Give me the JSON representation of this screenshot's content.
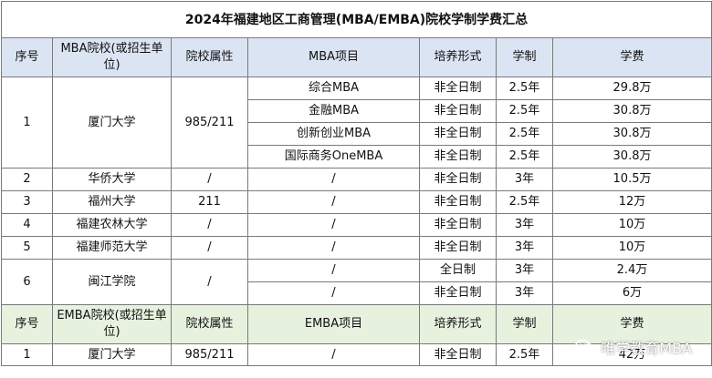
{
  "title": "2024年福建地区工商管理(MBA/EMBA)院校学制学费汇总",
  "headers": [
    "序号",
    "MBA院校(或招生单位)",
    "院校属性",
    "MBA项目",
    "培养形式",
    "学制",
    "学费"
  ],
  "xiamen": {
    "no": "1",
    "school": "厦门大学",
    "attr": "985/211",
    "programs": [
      {
        "name": "综合MBA",
        "form": "非全日制",
        "years": "2.5年",
        "fee": "29.8万"
      },
      {
        "name": "金融MBA",
        "form": "非全日制",
        "years": "2.5年",
        "fee": "30.8万"
      },
      {
        "name": "创新创业MBA",
        "form": "非全日制",
        "years": "2.5年",
        "fee": "30.8万"
      },
      {
        "name": "国际商务OneMBA",
        "form": "非全日制",
        "years": "2.5年",
        "fee": "30.8万"
      }
    ]
  },
  "rows": [
    {
      "no": "2",
      "school": "华侨大学",
      "attr": "/",
      "program": "/",
      "form": "非全日制",
      "years": "3年",
      "fee": "10.5万"
    },
    {
      "no": "3",
      "school": "福州大学",
      "attr": "211",
      "program": "/",
      "form": "非全日制",
      "years": "2.5年",
      "fee": "12万"
    },
    {
      "no": "4",
      "school": "福建农林大学",
      "attr": "/",
      "program": "/",
      "form": "非全日制",
      "years": "3年",
      "fee": "10万"
    },
    {
      "no": "5",
      "school": "福建师范大学",
      "attr": "/",
      "program": "/",
      "form": "非全日制",
      "years": "3年",
      "fee": "10万"
    }
  ],
  "minjiang": {
    "no": "6",
    "school": "闽江学院",
    "attr": "/",
    "options": [
      {
        "program": "/",
        "form": "全日制",
        "years": "3年",
        "fee": "2.4万"
      },
      {
        "program": "/",
        "form": "非全日制",
        "years": "3年",
        "fee": "6万"
      }
    ]
  },
  "emba_headers": [
    "序号",
    "EMBA院校(或招生单位)",
    "院校属性",
    "EMBA项目",
    "培养形式",
    "学制",
    "学费"
  ],
  "emba_rows": [
    {
      "no": "1",
      "school": "厦门大学",
      "attr": "985/211",
      "program": "/",
      "form": "非全日制",
      "years": "2.5年",
      "fee": "42万"
    }
  ],
  "watermark": "唯学教育MBA",
  "colors": {
    "mba_header": "#dbe4f2",
    "emba_header": "#e6f1de",
    "border": "#7a7a7a"
  }
}
